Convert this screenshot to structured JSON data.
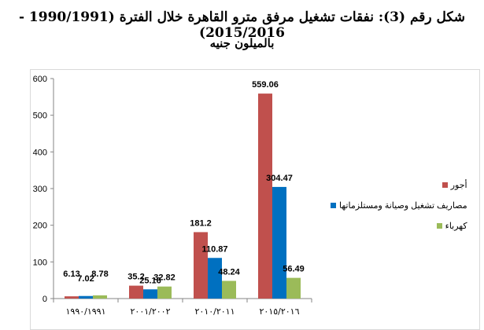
{
  "chart_data": {
    "type": "bar",
    "title": "شكل رقم (3): نفقات تشغيل مرفق مترو القاهرة خلال الفترة (1990/1991 - 2015/2016)",
    "subtitle": "بالميلون جنيه",
    "categories": [
      "١٩٩٠/١٩٩١",
      "٢٠٠١/٢٠٠٢",
      "٢٠١٠/٢٠١١",
      "٢٠١٥/٢٠١٦"
    ],
    "series": [
      {
        "name": "أجور",
        "color": "#c0504d",
        "values": [
          6.13,
          35.2,
          181.2,
          559.06
        ],
        "labels": [
          "6.13",
          "35.2",
          "181.2",
          "559.06"
        ]
      },
      {
        "name": "مصاريف تشغيل وصيانة ومستلزماتها",
        "color": "#0070c0",
        "values": [
          7.02,
          25.16,
          110.87,
          304.47
        ],
        "labels": [
          "7.02",
          "25.16",
          "110.87",
          "304.47"
        ]
      },
      {
        "name": "كهرباء",
        "color": "#9bbb59",
        "values": [
          8.78,
          32.82,
          48.24,
          56.49
        ],
        "labels": [
          "8.78",
          "32.82",
          "48.24",
          "56.49"
        ]
      }
    ],
    "yticks": [
      "0",
      "100",
      "200",
      "300",
      "400",
      "500",
      "600"
    ],
    "ylim": [
      0,
      600
    ],
    "xlabel": "",
    "ylabel": "",
    "grid": false,
    "legend": "right"
  }
}
